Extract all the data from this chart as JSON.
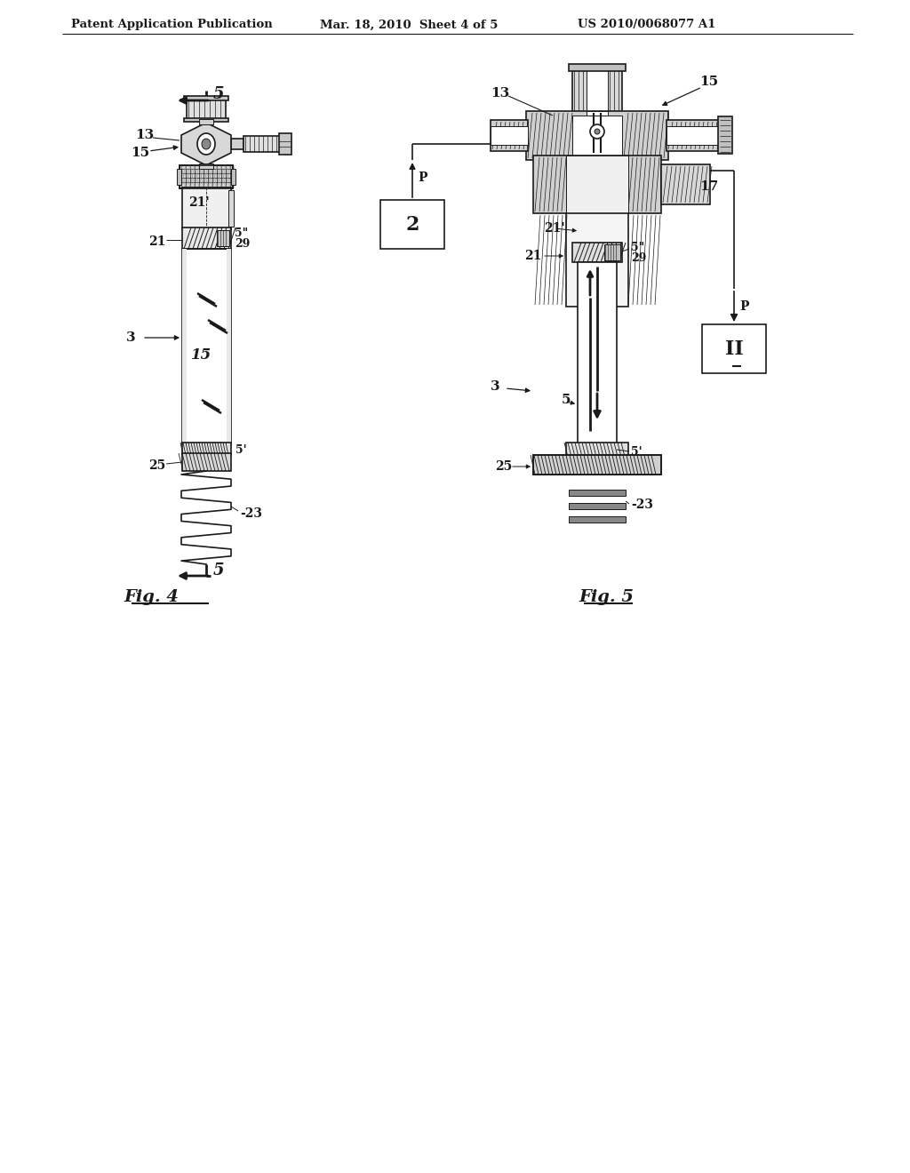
{
  "bg_color": "#ffffff",
  "header_text": "Patent Application Publication",
  "header_date": "Mar. 18, 2010  Sheet 4 of 5",
  "header_patent": "US 2010/0068077 A1",
  "fig4_label": "Fig. 4",
  "fig5_label": "Fig. 5",
  "line_color": "#1a1a1a",
  "hatch_color": "#555555"
}
